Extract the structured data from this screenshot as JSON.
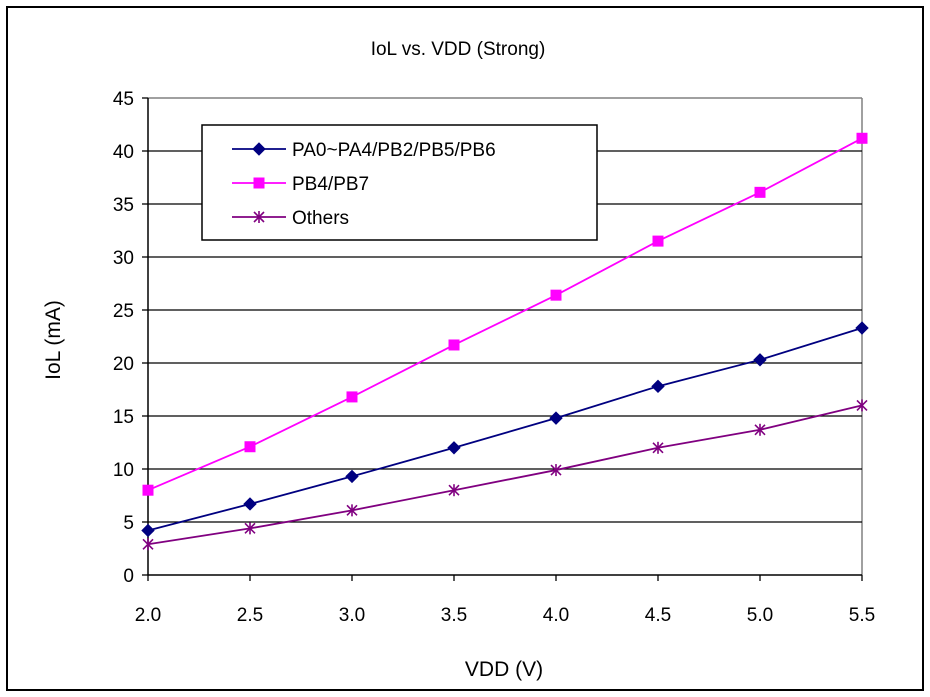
{
  "chart_data": {
    "type": "line",
    "title": "IoL vs. VDD (Strong)",
    "xlabel": "VDD (V)",
    "ylabel": "IoL (mA)",
    "x": [
      2.0,
      2.5,
      3.0,
      3.5,
      4.0,
      4.5,
      5.0,
      5.5
    ],
    "x_tick_labels": [
      "2.0",
      "2.5",
      "3.0",
      "3.5",
      "4.0",
      "4.5",
      "5.0",
      "5.5"
    ],
    "y_tick_labels": [
      "0",
      "5",
      "10",
      "15",
      "20",
      "25",
      "30",
      "35",
      "40",
      "45"
    ],
    "xlim": [
      2.0,
      5.5
    ],
    "ylim": [
      0,
      45
    ],
    "grid": "horizontal",
    "legend_position": "top-left",
    "series": [
      {
        "name": "PA0~PA4/PB2/PB5/PB6",
        "color": "#000080",
        "marker": "diamond",
        "values": [
          4.2,
          6.7,
          9.3,
          12.0,
          14.8,
          17.8,
          20.3,
          23.3
        ]
      },
      {
        "name": "PB4/PB7",
        "color": "#FF00FF",
        "marker": "square",
        "values": [
          8.0,
          12.1,
          16.8,
          21.7,
          26.4,
          31.5,
          36.1,
          41.2
        ]
      },
      {
        "name": "Others",
        "color": "#800080",
        "marker": "asterisk",
        "values": [
          2.9,
          4.4,
          6.1,
          8.0,
          9.9,
          12.0,
          13.7,
          16.0
        ]
      }
    ]
  }
}
